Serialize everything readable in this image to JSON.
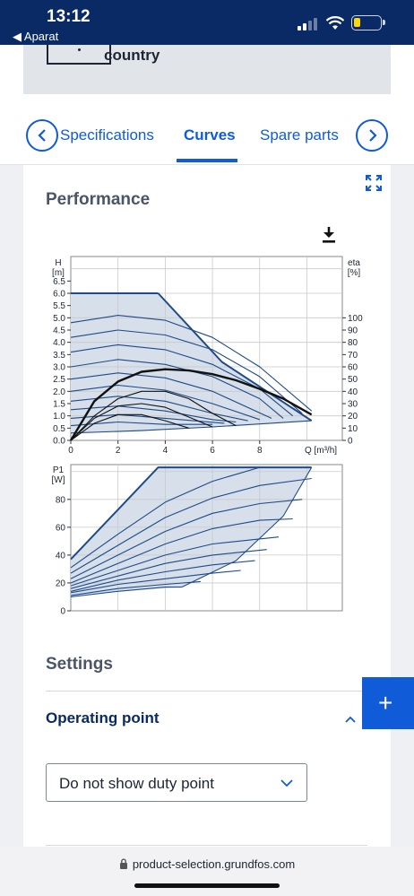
{
  "status_bar": {
    "time": "13:12",
    "back_app": "◀ Aparat"
  },
  "country_card": {
    "text": "country"
  },
  "tabs": {
    "items": [
      {
        "label": "Specifications"
      },
      {
        "label": "Curves"
      },
      {
        "label": "Spare parts"
      }
    ],
    "active": "Curves"
  },
  "performance": {
    "title": "Performance"
  },
  "chart_data": [
    {
      "type": "line",
      "title": "",
      "xlabel": "Q [m³/h]",
      "ylabel": "H [m]",
      "y2label": "eta [%]",
      "xlim": [
        0,
        11.5
      ],
      "ylim": [
        0,
        7.5
      ],
      "y2lim": [
        0,
        100
      ],
      "x_ticks": [
        0,
        2,
        4,
        6,
        8
      ],
      "y_ticks": [
        0.0,
        0.5,
        1.0,
        1.5,
        2.0,
        2.5,
        3.0,
        3.5,
        4.0,
        4.5,
        5.0,
        5.5,
        6.0,
        6.5
      ],
      "y2_ticks": [
        0,
        10,
        20,
        30,
        40,
        50,
        60,
        70,
        80,
        90,
        100
      ],
      "grid": true,
      "series": [
        {
          "x": [
            0,
            3.7
          ],
          "y": [
            6.0,
            6.0
          ]
        },
        {
          "x": [
            3.7,
            6.4,
            10.2
          ],
          "y": [
            6.0,
            3.2,
            0.8
          ]
        },
        {
          "x": [
            0,
            2,
            4,
            6,
            8,
            10.2
          ],
          "y": [
            4.8,
            5.1,
            4.9,
            4.2,
            3.0,
            1.2
          ]
        },
        {
          "x": [
            0,
            2,
            4,
            6,
            8,
            9.8
          ],
          "y": [
            4.2,
            4.5,
            4.3,
            3.7,
            2.6,
            1.1
          ]
        },
        {
          "x": [
            0,
            2,
            4,
            6,
            8,
            9.4
          ],
          "y": [
            3.6,
            3.9,
            3.7,
            3.1,
            2.1,
            1.0
          ]
        },
        {
          "x": [
            0,
            2,
            4,
            6,
            8,
            9.0
          ],
          "y": [
            3.0,
            3.3,
            3.1,
            2.6,
            1.7,
            0.9
          ]
        },
        {
          "x": [
            0,
            2,
            4,
            6,
            8.5
          ],
          "y": [
            2.5,
            2.75,
            2.55,
            2.0,
            0.9
          ]
        },
        {
          "x": [
            0,
            2,
            4,
            6,
            8.0
          ],
          "y": [
            2.0,
            2.25,
            2.05,
            1.5,
            0.85
          ]
        },
        {
          "x": [
            0,
            2,
            4,
            6,
            7.5
          ],
          "y": [
            1.6,
            1.8,
            1.6,
            1.1,
            0.8
          ]
        },
        {
          "x": [
            0,
            2,
            4,
            6,
            7.0
          ],
          "y": [
            1.25,
            1.4,
            1.2,
            0.85,
            0.75
          ]
        },
        {
          "x": [
            0,
            2,
            4,
            6.5
          ],
          "y": [
            0.9,
            1.05,
            0.9,
            0.7
          ]
        },
        {
          "x": [
            0,
            2,
            4,
            6.0
          ],
          "y": [
            0.6,
            0.75,
            0.65,
            0.65
          ]
        },
        {
          "x": [
            0,
            3,
            6,
            10.2
          ],
          "y": [
            0.3,
            0.4,
            0.55,
            0.8
          ]
        },
        {
          "x": [
            0,
            1,
            2,
            3,
            4,
            5,
            6,
            7,
            8,
            9,
            10.2
          ],
          "y": [
            0,
            1.6,
            2.4,
            2.8,
            2.9,
            2.85,
            2.7,
            2.45,
            2.1,
            1.7,
            1.05
          ]
        },
        {
          "x": [
            0,
            1,
            2,
            3,
            4,
            5,
            6,
            7
          ],
          "y": [
            0,
            1.0,
            1.7,
            2.0,
            2.0,
            1.7,
            1.1,
            0.6
          ]
        },
        {
          "x": [
            0,
            1,
            2,
            3,
            4,
            5,
            6
          ],
          "y": [
            0,
            0.9,
            1.4,
            1.5,
            1.35,
            0.95,
            0.55
          ]
        },
        {
          "x": [
            0,
            1,
            2,
            3,
            4,
            5
          ],
          "y": [
            0,
            0.7,
            1.05,
            1.05,
            0.8,
            0.5
          ]
        }
      ]
    },
    {
      "type": "line",
      "title": "",
      "xlabel": "",
      "ylabel": "P1 [W]",
      "xlim": [
        0,
        11.5
      ],
      "ylim": [
        0,
        105
      ],
      "y_ticks": [
        0,
        20,
        40,
        60,
        80
      ],
      "grid": true,
      "series": [
        {
          "x": [
            0,
            3.7,
            10.2
          ],
          "y": [
            37,
            103,
            103
          ]
        },
        {
          "x": [
            0,
            2,
            4,
            6,
            8
          ],
          "y": [
            31,
            55,
            78,
            93,
            103
          ]
        },
        {
          "x": [
            0,
            2,
            4,
            6,
            8,
            10.2
          ],
          "y": [
            27,
            47,
            67,
            81,
            90,
            95
          ]
        },
        {
          "x": [
            0,
            2,
            4,
            6,
            8,
            9.8
          ],
          "y": [
            23,
            40,
            57,
            70,
            77,
            80
          ]
        },
        {
          "x": [
            0,
            2,
            4,
            6,
            8,
            9.4
          ],
          "y": [
            20,
            34,
            48,
            59,
            65,
            66
          ]
        },
        {
          "x": [
            0,
            2,
            4,
            6,
            8.8
          ],
          "y": [
            18,
            29,
            40,
            48,
            53
          ]
        },
        {
          "x": [
            0,
            2,
            4,
            6,
            8.3
          ],
          "y": [
            16,
            25,
            34,
            40,
            44
          ]
        },
        {
          "x": [
            0,
            2,
            4,
            6,
            7.8
          ],
          "y": [
            14,
            22,
            28,
            33,
            36
          ]
        },
        {
          "x": [
            0,
            2,
            4,
            6,
            7.2
          ],
          "y": [
            13,
            19,
            23,
            27,
            29
          ]
        },
        {
          "x": [
            0,
            2,
            4,
            5.5
          ],
          "y": [
            11,
            16,
            19,
            21
          ]
        },
        {
          "x": [
            0,
            2,
            4,
            4.7
          ],
          "y": [
            10,
            14,
            17,
            17
          ]
        },
        {
          "x": [
            4.7,
            7,
            9,
            10.2
          ],
          "y": [
            17,
            36,
            68,
            103
          ]
        }
      ]
    }
  ],
  "settings": {
    "title": "Settings"
  },
  "operating_point": {
    "label": "Operating point",
    "select_value": "Do not show duty point"
  },
  "url_bar": {
    "url": "product-selection.grundfos.com"
  },
  "colors": {
    "accent": "#0f5bd8",
    "status_bar": "#0a2a66",
    "curve": "#1e4a8a",
    "fill": "#d6dfea"
  },
  "icons": [
    "chevron-left-icon",
    "chevron-right-icon",
    "expand-icon",
    "download-icon",
    "chevron-up-icon",
    "chevron-down-icon",
    "plus-icon",
    "lock-icon",
    "wifi-icon",
    "battery-icon",
    "signal-icon"
  ]
}
